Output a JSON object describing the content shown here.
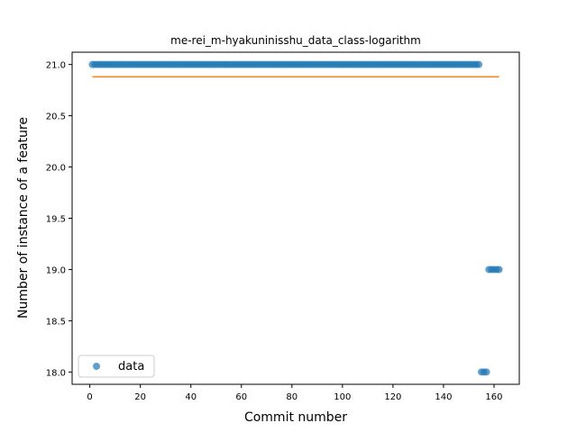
{
  "chart_data": {
    "type": "scatter",
    "title": "me-rei_m-hyakuninisshu_data_class-logarithm",
    "xlabel": "Commit number",
    "ylabel": "Number of instance of a feature",
    "xlim": [
      -7,
      170
    ],
    "ylim": [
      17.88,
      21.12
    ],
    "xticks": [
      0,
      20,
      40,
      60,
      80,
      100,
      120,
      140,
      160
    ],
    "yticks": [
      18.0,
      18.5,
      19.0,
      19.5,
      20.0,
      20.5,
      21.0
    ],
    "ytick_labels": [
      "18.0",
      "18.5",
      "19.0",
      "19.5",
      "20.0",
      "20.5",
      "21.0"
    ],
    "grid": false,
    "legend": {
      "placement": "lower-left",
      "entries": [
        {
          "label": "data",
          "color": "#1f77b4"
        }
      ]
    },
    "series": [
      {
        "name": "data",
        "kind": "points",
        "color": "#1f77b4",
        "segments": [
          {
            "x_start": 1,
            "x_end": 154,
            "y": 21.0
          },
          {
            "x_start": 155,
            "x_end": 157,
            "y": 18.0
          },
          {
            "x_start": 158,
            "x_end": 162,
            "y": 19.0
          }
        ]
      },
      {
        "kind": "line",
        "color": "#ff7f0e",
        "x": [
          1,
          162
        ],
        "y": [
          20.88,
          20.88
        ]
      }
    ]
  }
}
